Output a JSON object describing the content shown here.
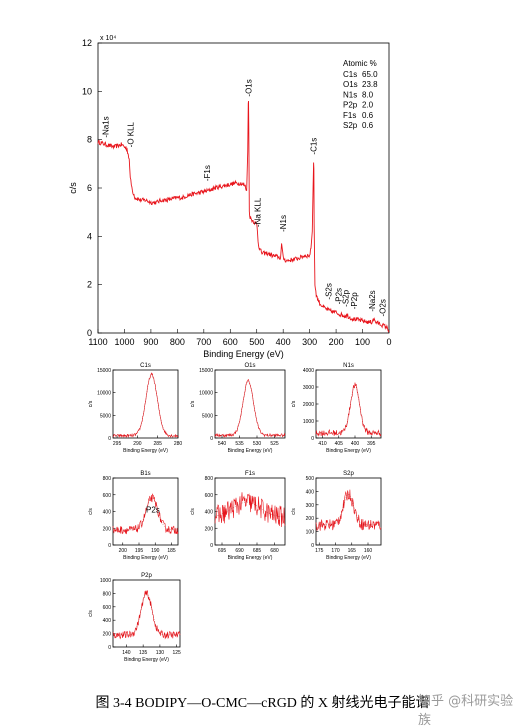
{
  "chart_data": [
    {
      "type": "line",
      "id": "survey",
      "multiplier_label": "x 10⁴",
      "ylabel": "c/s",
      "xlabel": "Binding Energy (eV)",
      "xlim": [
        1100,
        0
      ],
      "ylim": [
        0,
        12
      ],
      "xticks": [
        1100,
        1000,
        900,
        800,
        700,
        600,
        500,
        400,
        300,
        200,
        100,
        0
      ],
      "yticks": [
        0,
        2,
        4,
        6,
        8,
        10,
        12
      ],
      "x": [
        1100,
        1070,
        1040,
        1010,
        990,
        982,
        978,
        970,
        960,
        940,
        920,
        900,
        880,
        860,
        840,
        820,
        800,
        780,
        760,
        740,
        720,
        700,
        680,
        660,
        640,
        620,
        600,
        580,
        560,
        545,
        538,
        534,
        532,
        531,
        530,
        528,
        525,
        520,
        510,
        500,
        497,
        495,
        490,
        480,
        460,
        440,
        420,
        410,
        406,
        404,
        400,
        390,
        380,
        360,
        340,
        320,
        300,
        295,
        290,
        287,
        285,
        284,
        283,
        280,
        275,
        270,
        260,
        240,
        220,
        200,
        180,
        165,
        160,
        150,
        140,
        120,
        100,
        80,
        64,
        60,
        50,
        40,
        30,
        20,
        10,
        0
      ],
      "y": [
        7.9,
        7.8,
        7.7,
        7.8,
        7.6,
        7.2,
        6.4,
        5.9,
        5.6,
        5.5,
        5.5,
        5.4,
        5.4,
        5.5,
        5.5,
        5.55,
        5.6,
        5.6,
        5.7,
        5.75,
        5.8,
        5.85,
        5.9,
        6.0,
        6.05,
        6.1,
        6.15,
        6.2,
        6.2,
        6.1,
        5.9,
        7.5,
        9.5,
        9.6,
        8.5,
        5.0,
        4.8,
        4.7,
        4.6,
        4.5,
        4.2,
        3.8,
        3.5,
        3.3,
        3.3,
        3.2,
        3.15,
        3.1,
        3.7,
        3.5,
        3.1,
        3.0,
        3.0,
        3.05,
        3.1,
        3.2,
        3.2,
        3.5,
        4.2,
        6.0,
        7.1,
        6.8,
        4.5,
        2.0,
        1.6,
        1.4,
        1.2,
        1.0,
        0.9,
        0.85,
        0.75,
        0.7,
        0.75,
        0.65,
        0.6,
        0.55,
        0.5,
        0.45,
        0.45,
        0.6,
        0.45,
        0.4,
        0.35,
        0.3,
        0.25,
        0.1
      ],
      "peak_labels": [
        {
          "text": "-Na1s",
          "x": 1072,
          "y": 8.0
        },
        {
          "text": "-O KLL",
          "x": 978,
          "y": 7.6
        },
        {
          "text": "-F1s",
          "x": 688,
          "y": 6.2
        },
        {
          "text": "-O1s",
          "x": 531,
          "y": 9.7
        },
        {
          "text": "-Na KLL",
          "x": 497,
          "y": 4.3
        },
        {
          "text": "-N1s",
          "x": 400,
          "y": 4.1
        },
        {
          "text": "-C1s",
          "x": 285,
          "y": 7.3
        },
        {
          "text": "-S2s",
          "x": 228,
          "y": 1.3
        },
        {
          "text": "-P2s",
          "x": 191,
          "y": 1.1
        },
        {
          "text": "-S2p",
          "x": 165,
          "y": 1.0
        },
        {
          "text": "-P2p",
          "x": 133,
          "y": 0.9
        },
        {
          "text": "-Na2s",
          "x": 64,
          "y": 0.8
        },
        {
          "text": "-O2s",
          "x": 24,
          "y": 0.6
        }
      ],
      "legend": {
        "title": "Atomic %",
        "rows": [
          {
            "el": "C1s",
            "val": "65.0"
          },
          {
            "el": "O1s",
            "val": "23.8"
          },
          {
            "el": "N1s",
            "val": "8.0"
          },
          {
            "el": "P2p",
            "val": "2.0"
          },
          {
            "el": "F1s",
            "val": "0.6"
          },
          {
            "el": "S2p",
            "val": "0.6"
          }
        ]
      }
    },
    {
      "type": "line",
      "id": "c1s",
      "title": "C1s",
      "ylabel": "c/s",
      "xlabel": "Binding Energy (eV)",
      "xlim": [
        296,
        280
      ],
      "ylim": [
        0,
        15000
      ],
      "xticks": [
        295,
        290,
        285,
        280
      ],
      "yticks": [
        0,
        5000,
        10000,
        15000
      ],
      "peak": 286.5,
      "sigma": 1.4,
      "amp": 13500,
      "base": 500,
      "noise": 350
    },
    {
      "type": "line",
      "id": "o1s",
      "title": "O1s",
      "ylabel": "c/s",
      "xlabel": "Binding Energy (eV)",
      "xlim": [
        542,
        522
      ],
      "ylim": [
        0,
        15000
      ],
      "xticks": [
        540,
        535,
        530,
        525
      ],
      "yticks": [
        0,
        5000,
        10000,
        15000
      ],
      "peak": 532.5,
      "sigma": 1.5,
      "amp": 12000,
      "base": 600,
      "noise": 350
    },
    {
      "type": "line",
      "id": "n1s",
      "title": "N1s",
      "ylabel": "c/s",
      "xlabel": "Binding Energy (eV)",
      "xlim": [
        412,
        392
      ],
      "ylim": [
        0,
        4000
      ],
      "xticks": [
        410,
        405,
        400,
        395
      ],
      "yticks": [
        0,
        1000,
        2000,
        3000,
        4000
      ],
      "peak": 400,
      "sigma": 1.4,
      "amp": 2800,
      "base": 300,
      "noise": 180
    },
    {
      "type": "line",
      "id": "b1s",
      "title": "B1s",
      "ylabel": "c/s",
      "xlabel": "Binding Energy (eV)",
      "xlim": [
        203,
        183
      ],
      "ylim": [
        0,
        800
      ],
      "xticks": [
        200,
        195,
        190,
        185
      ],
      "yticks": [
        0,
        200,
        400,
        600,
        800
      ],
      "peak": 191,
      "sigma": 1.8,
      "amp": 380,
      "base": 180,
      "noise": 50,
      "annotation": "P2s"
    },
    {
      "type": "line",
      "id": "f1s",
      "title": "F1s",
      "ylabel": "c/s",
      "xlabel": "Binding Energy (eV)",
      "xlim": [
        697,
        677
      ],
      "ylim": [
        0,
        800
      ],
      "xticks": [
        695,
        690,
        685,
        680
      ],
      "yticks": [
        0,
        200,
        400,
        600,
        800
      ],
      "peak": 688,
      "sigma": 4.0,
      "amp": 180,
      "base": 330,
      "noise": 130
    },
    {
      "type": "line",
      "id": "s2p",
      "title": "S2p",
      "ylabel": "c/s",
      "xlabel": "Binding Energy (eV)",
      "xlim": [
        176,
        156
      ],
      "ylim": [
        0,
        500
      ],
      "xticks": [
        175,
        170,
        165,
        160
      ],
      "yticks": [
        0,
        100,
        200,
        300,
        400,
        500
      ],
      "peak": 166,
      "sigma": 1.6,
      "amp": 230,
      "base": 150,
      "noise": 45
    },
    {
      "type": "line",
      "id": "p2p",
      "title": "P2p",
      "ylabel": "c/s",
      "xlabel": "Binding Energy (eV)",
      "xlim": [
        144,
        124
      ],
      "ylim": [
        0,
        1000
      ],
      "xticks": [
        140,
        135,
        130,
        125
      ],
      "yticks": [
        0,
        200,
        400,
        600,
        800,
        1000
      ],
      "peak": 134,
      "sigma": 1.6,
      "amp": 620,
      "base": 180,
      "noise": 55
    }
  ],
  "caption": "图 3-4 BODIPY—O-CMC—cRGD 的 X 射线光电子能谱",
  "watermark": "知乎 @科研实验族"
}
